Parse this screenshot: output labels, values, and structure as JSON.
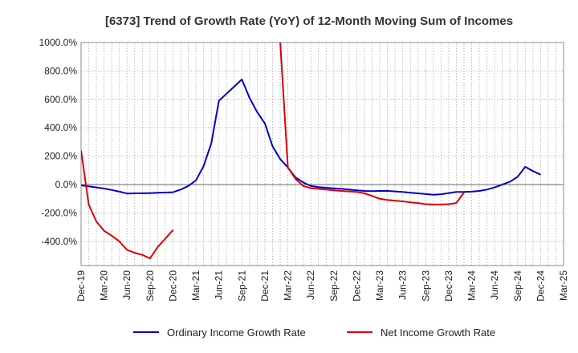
{
  "chart_data": {
    "type": "line",
    "title": "[6373]  Trend of Growth Rate (YoY) of 12-Month Moving Sum of Incomes",
    "xlabel": "",
    "ylabel": "",
    "ylim": [
      -570,
      1000
    ],
    "y_ticks": [
      1000,
      800,
      600,
      400,
      200,
      0,
      -200,
      -400
    ],
    "y_tick_labels": [
      "1000.0%",
      "800.0%",
      "600.0%",
      "400.0%",
      "200.0%",
      "0.0%",
      "-200.0%",
      "-400.0%"
    ],
    "x_range": [
      "2019-12",
      "2025-03"
    ],
    "x_tick_labels": [
      "Dec-19",
      "Mar-20",
      "Jun-20",
      "Sep-20",
      "Dec-20",
      "Mar-21",
      "Jun-21",
      "Sep-21",
      "Dec-21",
      "Mar-22",
      "Jun-22",
      "Sep-22",
      "Dec-22",
      "Mar-23",
      "Jun-23",
      "Sep-23",
      "Dec-23",
      "Mar-24",
      "Jun-24",
      "Sep-24",
      "Dec-24",
      "Mar-25"
    ],
    "grid": true,
    "legend_position": "bottom",
    "series": [
      {
        "name": "Ordinary Income Growth Rate",
        "color": "#0000cc",
        "x": [
          "2019-12",
          "2020-01",
          "2020-02",
          "2020-03",
          "2020-04",
          "2020-05",
          "2020-06",
          "2020-07",
          "2020-08",
          "2020-09",
          "2020-10",
          "2020-11",
          "2020-12",
          "2021-01",
          "2021-02",
          "2021-03",
          "2021-04",
          "2021-05",
          "2021-06",
          "2021-07",
          "2021-08",
          "2021-09",
          "2021-10",
          "2021-11",
          "2021-12",
          "2022-01",
          "2022-02",
          "2022-03",
          "2022-04",
          "2022-05",
          "2022-06",
          "2022-07",
          "2022-08",
          "2022-09",
          "2022-10",
          "2022-11",
          "2022-12",
          "2023-01",
          "2023-02",
          "2023-03",
          "2023-04",
          "2023-05",
          "2023-06",
          "2023-07",
          "2023-08",
          "2023-09",
          "2023-10",
          "2023-11",
          "2023-12",
          "2024-01",
          "2024-02",
          "2024-03",
          "2024-04",
          "2024-05",
          "2024-06",
          "2024-07",
          "2024-08",
          "2024-09",
          "2024-10",
          "2024-11",
          "2024-12"
        ],
        "values": [
          -5,
          -12,
          -20,
          -28,
          -38,
          -50,
          -63,
          -62,
          -61,
          -60,
          -58,
          -56,
          -54,
          -35,
          -10,
          30,
          130,
          290,
          590,
          640,
          690,
          740,
          610,
          510,
          430,
          270,
          180,
          120,
          50,
          15,
          -10,
          -18,
          -22,
          -26,
          -30,
          -35,
          -40,
          -45,
          -46,
          -45,
          -44,
          -48,
          -52,
          -57,
          -62,
          -67,
          -72,
          -68,
          -60,
          -52,
          -52,
          -50,
          -45,
          -35,
          -20,
          0,
          20,
          55,
          125,
          95,
          70
        ]
      },
      {
        "name": "Net Income Growth Rate",
        "color": "#dd0000",
        "segments": [
          {
            "x": [
              "2019-12",
              "2020-01",
              "2020-02",
              "2020-03",
              "2020-04",
              "2020-05",
              "2020-06",
              "2020-07",
              "2020-08",
              "2020-09",
              "2020-10",
              "2020-11",
              "2020-12"
            ],
            "values": [
              240,
              -140,
              -260,
              -325,
              -360,
              -400,
              -460,
              -480,
              -495,
              -520,
              -440,
              -380,
              -320
            ]
          },
          {
            "x": [
              "2022-02",
              "2022-03",
              "2022-04",
              "2022-05",
              "2022-06",
              "2022-07",
              "2022-08",
              "2022-09",
              "2022-10",
              "2022-11",
              "2022-12",
              "2023-01",
              "2023-02",
              "2023-03",
              "2023-04",
              "2023-05",
              "2023-06",
              "2023-07",
              "2023-08",
              "2023-09",
              "2023-10",
              "2023-11",
              "2023-12",
              "2024-01",
              "2024-02"
            ],
            "values": [
              1010,
              120,
              40,
              -10,
              -25,
              -30,
              -35,
              -40,
              -45,
              -48,
              -52,
              -62,
              -80,
              -100,
              -108,
              -113,
              -118,
              -125,
              -130,
              -138,
              -140,
              -140,
              -138,
              -130,
              -55
            ]
          }
        ]
      }
    ]
  }
}
